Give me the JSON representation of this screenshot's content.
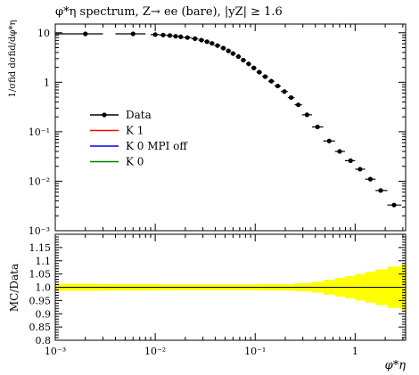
{
  "title": "φ*η spectrum, Z→ ee (bare), |yZ| ≥ 1.6",
  "main_ylabel": "1/σfid dσfid/dφ*η",
  "ratio_ylabel": "MC/Data",
  "xlabel": "φ*η",
  "legend": [
    {
      "label": "Data",
      "color": "#000000",
      "marker": "dot"
    },
    {
      "label": "K 1",
      "color": "#ff0000",
      "marker": "line"
    },
    {
      "label": "K 0 MPI off",
      "color": "#0000ff",
      "marker": "line"
    },
    {
      "label": "K 0",
      "color": "#008000",
      "marker": "line"
    }
  ],
  "chart_data": [
    {
      "type": "scatter",
      "panel": "main",
      "xscale": "log",
      "yscale": "log",
      "xlim": [
        0.001,
        3.2
      ],
      "ylim": [
        0.001,
        15
      ],
      "x_ticks": [
        "10⁻³",
        "10⁻²",
        "10⁻¹",
        "1"
      ],
      "y_ticks": [
        "10⁻³",
        "10⁻²",
        "10⁻¹",
        "1",
        "10"
      ],
      "series": [
        {
          "name": "Data",
          "color": "#000000",
          "points": [
            {
              "x": 0.002,
              "y": 9.5,
              "xerr": [
                0.001,
                0.003
              ]
            },
            {
              "x": 0.006,
              "y": 9.5,
              "xerr": [
                0.004,
                0.008
              ]
            },
            {
              "x": 0.01,
              "y": 9.2,
              "xerr": [
                0.009,
                0.011
              ]
            },
            {
              "x": 0.012,
              "y": 9.0,
              "xerr": [
                0.011,
                0.013
              ]
            },
            {
              "x": 0.014,
              "y": 8.8,
              "xerr": [
                0.013,
                0.015
              ]
            },
            {
              "x": 0.016,
              "y": 8.5,
              "xerr": [
                0.015,
                0.017
              ]
            },
            {
              "x": 0.018,
              "y": 8.3,
              "xerr": [
                0.017,
                0.019
              ]
            },
            {
              "x": 0.021,
              "y": 8.0,
              "xerr": [
                0.019,
                0.023
              ]
            },
            {
              "x": 0.025,
              "y": 7.6,
              "xerr": [
                0.023,
                0.027
              ]
            },
            {
              "x": 0.029,
              "y": 7.1,
              "xerr": [
                0.027,
                0.031
              ]
            },
            {
              "x": 0.033,
              "y": 6.6,
              "xerr": [
                0.031,
                0.035
              ]
            },
            {
              "x": 0.037,
              "y": 6.1,
              "xerr": [
                0.035,
                0.039
              ]
            },
            {
              "x": 0.042,
              "y": 5.5,
              "xerr": [
                0.039,
                0.045
              ]
            },
            {
              "x": 0.048,
              "y": 4.9,
              "xerr": [
                0.045,
                0.051
              ]
            },
            {
              "x": 0.054,
              "y": 4.3,
              "xerr": [
                0.051,
                0.057
              ]
            },
            {
              "x": 0.06,
              "y": 3.8,
              "xerr": [
                0.057,
                0.064
              ]
            },
            {
              "x": 0.068,
              "y": 3.3,
              "xerr": [
                0.064,
                0.072
              ]
            },
            {
              "x": 0.076,
              "y": 2.8,
              "xerr": [
                0.072,
                0.081
              ]
            },
            {
              "x": 0.086,
              "y": 2.35,
              "xerr": [
                0.081,
                0.091
              ]
            },
            {
              "x": 0.097,
              "y": 1.95,
              "xerr": [
                0.091,
                0.103
              ]
            },
            {
              "x": 0.11,
              "y": 1.6,
              "xerr": [
                0.103,
                0.117
              ]
            },
            {
              "x": 0.126,
              "y": 1.3,
              "xerr": [
                0.117,
                0.135
              ]
            },
            {
              "x": 0.145,
              "y": 1.05,
              "xerr": [
                0.135,
                0.156
              ]
            },
            {
              "x": 0.168,
              "y": 0.84,
              "xerr": [
                0.156,
                0.181
              ]
            },
            {
              "x": 0.196,
              "y": 0.65,
              "xerr": [
                0.181,
                0.212
              ]
            },
            {
              "x": 0.229,
              "y": 0.49,
              "xerr": [
                0.212,
                0.248
              ]
            },
            {
              "x": 0.27,
              "y": 0.35,
              "xerr": [
                0.248,
                0.294
              ]
            },
            {
              "x": 0.33,
              "y": 0.22,
              "xerr": [
                0.294,
                0.37
              ]
            },
            {
              "x": 0.42,
              "y": 0.125,
              "xerr": [
                0.37,
                0.48
              ]
            },
            {
              "x": 0.55,
              "y": 0.065,
              "xerr": [
                0.48,
                0.63
              ]
            },
            {
              "x": 0.7,
              "y": 0.04,
              "xerr": [
                0.63,
                0.79
              ]
            },
            {
              "x": 0.9,
              "y": 0.026,
              "xerr": [
                0.79,
                1.0
              ]
            },
            {
              "x": 1.12,
              "y": 0.0175,
              "xerr": [
                1.0,
                1.26
              ]
            },
            {
              "x": 1.42,
              "y": 0.011,
              "xerr": [
                1.26,
                1.6
              ]
            },
            {
              "x": 1.8,
              "y": 0.0065,
              "xerr": [
                1.6,
                2.1
              ]
            },
            {
              "x": 2.45,
              "y": 0.0033,
              "xerr": [
                2.1,
                2.9
              ]
            }
          ]
        },
        {
          "name": "K 1",
          "color": "#ff0000",
          "points": []
        },
        {
          "name": "K 0 MPI off",
          "color": "#0000ff",
          "points": []
        },
        {
          "name": "K 0",
          "color": "#008000",
          "points": []
        }
      ]
    },
    {
      "type": "area",
      "panel": "ratio",
      "xscale": "log",
      "xlim": [
        0.001,
        3.2
      ],
      "ylim": [
        0.8,
        1.2
      ],
      "y_ticks": [
        "0.8",
        "0.85",
        "0.9",
        "0.95",
        "1.0",
        "1.05",
        "1.1",
        "1.15"
      ],
      "reference_line": 1.0,
      "band_color": "#ffff00",
      "band": [
        {
          "x0": 0.001,
          "x1": 0.003,
          "err": 0.013
        },
        {
          "x0": 0.003,
          "x1": 0.011,
          "err": 0.012
        },
        {
          "x0": 0.011,
          "x1": 0.103,
          "err": 0.011
        },
        {
          "x0": 0.103,
          "x1": 0.248,
          "err": 0.012
        },
        {
          "x0": 0.248,
          "x1": 0.37,
          "err": 0.015
        },
        {
          "x0": 0.37,
          "x1": 0.48,
          "err": 0.02
        },
        {
          "x0": 0.48,
          "x1": 0.63,
          "err": 0.028
        },
        {
          "x0": 0.63,
          "x1": 0.79,
          "err": 0.035
        },
        {
          "x0": 0.79,
          "x1": 1.0,
          "err": 0.042
        },
        {
          "x0": 1.0,
          "x1": 1.26,
          "err": 0.05
        },
        {
          "x0": 1.26,
          "x1": 1.6,
          "err": 0.058
        },
        {
          "x0": 1.6,
          "x1": 2.1,
          "err": 0.067
        },
        {
          "x0": 2.1,
          "x1": 2.9,
          "err": 0.078
        },
        {
          "x0": 2.9,
          "x1": 3.2,
          "err": 0.088
        }
      ]
    }
  ]
}
